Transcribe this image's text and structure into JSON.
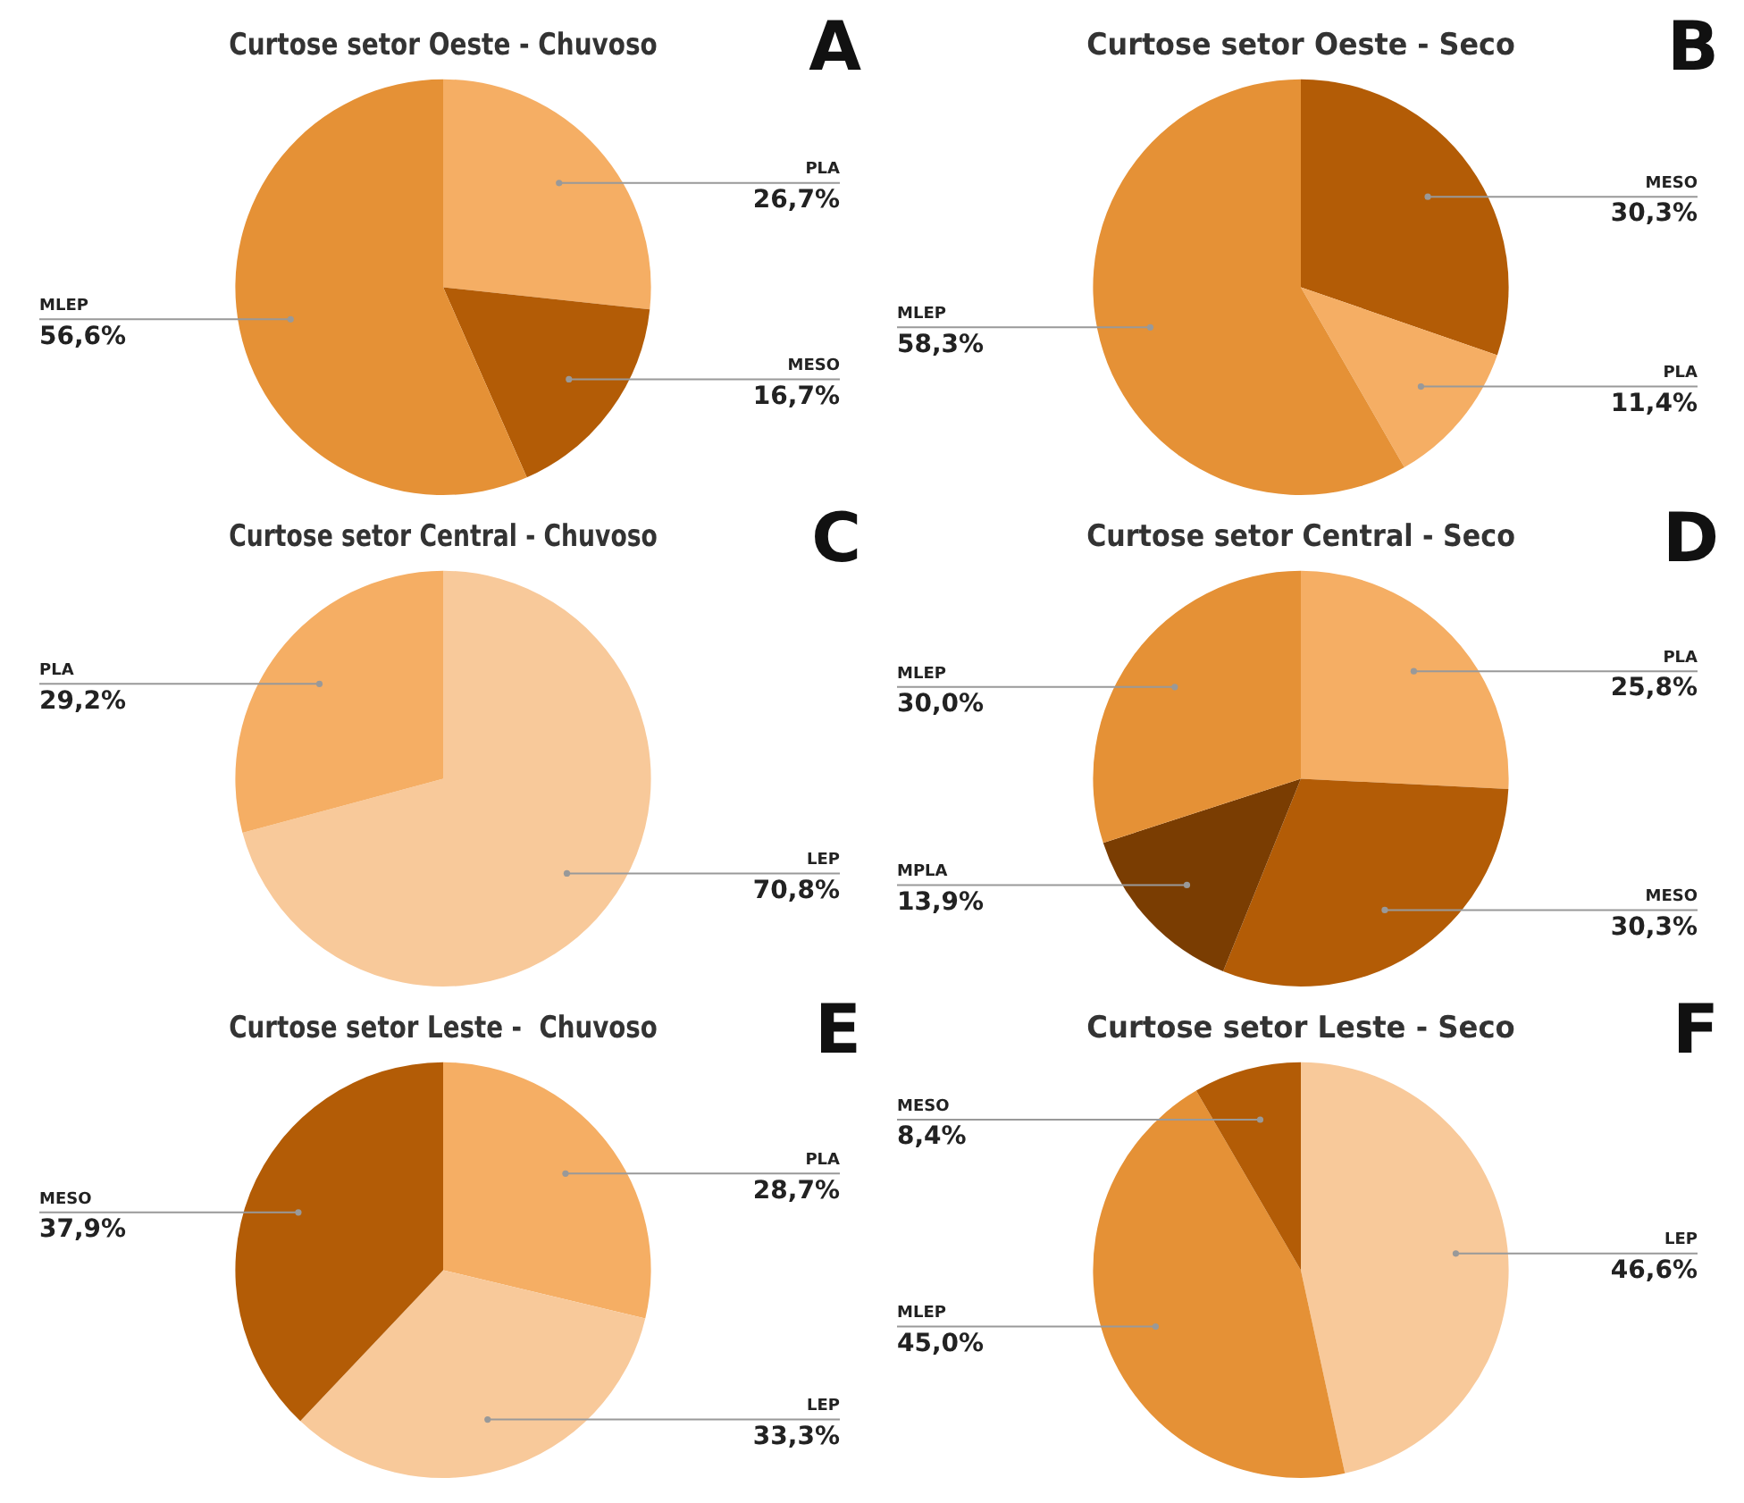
{
  "chart_data": [
    {
      "type": "pie",
      "title": "Curtose setor Oeste - Chuvoso",
      "annotations": [
        "A"
      ],
      "categories": [
        "PLA",
        "MESO",
        "MLEP"
      ],
      "values": [
        26.7,
        16.7,
        56.6
      ],
      "value_labels": [
        "26,7%",
        "16,7%",
        "56,6%"
      ],
      "colors": [
        "#f5ae64",
        "#b35c06",
        "#e59136"
      ]
    },
    {
      "type": "pie",
      "title": "Curtose setor Oeste - Seco",
      "annotations": [
        "B"
      ],
      "categories": [
        "MESO",
        "PLA",
        "MLEP"
      ],
      "values": [
        30.3,
        11.4,
        58.3
      ],
      "value_labels": [
        "30,3%",
        "11,4%",
        "58,3%"
      ],
      "colors": [
        "#b35c06",
        "#f5ae64",
        "#e59136"
      ]
    },
    {
      "type": "pie",
      "title": "Curtose setor Central - Chuvoso",
      "annotations": [
        "C"
      ],
      "categories": [
        "LEP",
        "PLA"
      ],
      "values": [
        70.8,
        29.2
      ],
      "value_labels": [
        "70,8%",
        "29,2%"
      ],
      "colors": [
        "#f8c99a",
        "#f5ae64"
      ]
    },
    {
      "type": "pie",
      "title": "Curtose setor Central - Seco",
      "annotations": [
        "D"
      ],
      "categories": [
        "PLA",
        "MESO",
        "MPLA",
        "MLEP"
      ],
      "values": [
        25.8,
        30.3,
        13.9,
        30.0
      ],
      "value_labels": [
        "25,8%",
        "30,3%",
        "13,9%",
        "30,0%"
      ],
      "colors": [
        "#f5ae64",
        "#b35c06",
        "#7a3d02",
        "#e59136"
      ]
    },
    {
      "type": "pie",
      "title": "Curtose setor Leste -  Chuvoso",
      "annotations": [
        "E"
      ],
      "categories": [
        "PLA",
        "LEP",
        "MESO"
      ],
      "values": [
        28.7,
        33.3,
        37.9
      ],
      "value_labels": [
        "28,7%",
        "33,3%",
        "37,9%"
      ],
      "colors": [
        "#f5ae64",
        "#f8c99a",
        "#b35c06"
      ]
    },
    {
      "type": "pie",
      "title": "Curtose setor Leste - Seco",
      "annotations": [
        "F"
      ],
      "categories": [
        "LEP",
        "MLEP",
        "MESO"
      ],
      "values": [
        46.6,
        45.0,
        8.4
      ],
      "value_labels": [
        "46,6%",
        "45,0%",
        "8,4%"
      ],
      "colors": [
        "#f8c99a",
        "#e59136",
        "#b35c06"
      ]
    }
  ]
}
